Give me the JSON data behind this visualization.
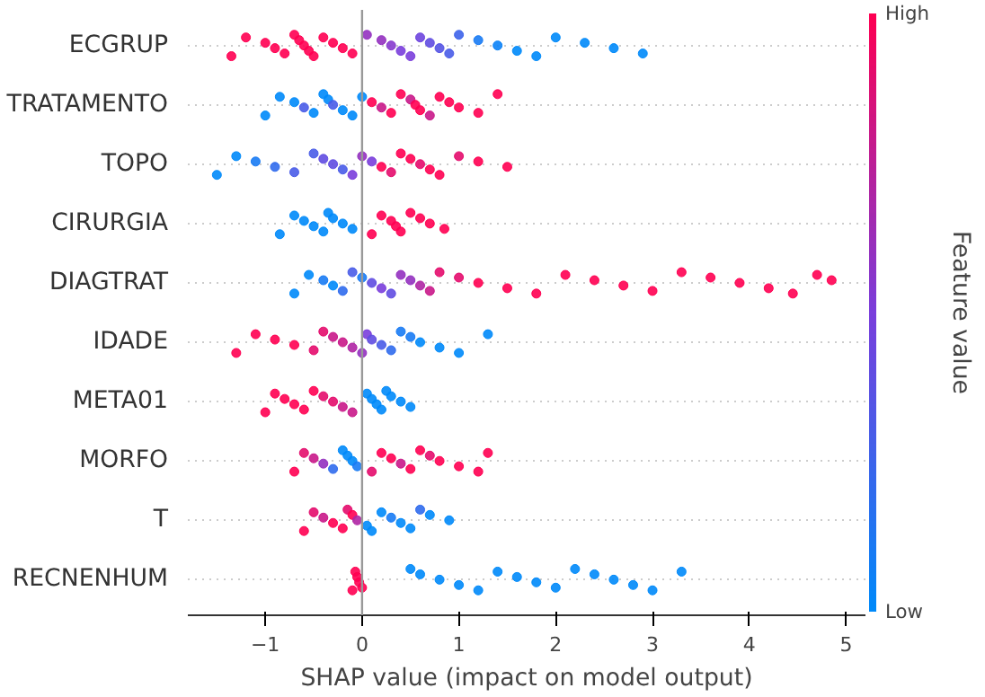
{
  "chart_data": {
    "type": "scatter",
    "orientation": "horizontal",
    "xlabel": "SHAP value (impact on model output)",
    "clabel": "Feature value",
    "categories": [
      "ECGRUP",
      "TRATAMENTO",
      "TOPO",
      "CIRURGIA",
      "DIAGTRAT",
      "IDADE",
      "META01",
      "MORFO",
      "T",
      "RECNENHUM"
    ],
    "xlim": [
      -1.8,
      5.2
    ],
    "xticks": [
      -1,
      0,
      1,
      2,
      3,
      4,
      5
    ],
    "clim": [
      0,
      1
    ],
    "cticks": [
      {
        "value": 0,
        "label": "Low"
      },
      {
        "value": 1,
        "label": "High"
      }
    ],
    "grid": "y",
    "marker": "circle",
    "ref_lines": [
      {
        "axis": "x",
        "value": 0,
        "color": "#999999"
      }
    ],
    "series": [
      {
        "x": [
          "ECGRUP",
          "ECGRUP",
          "ECGRUP",
          "ECGRUP",
          "ECGRUP",
          "ECGRUP",
          "ECGRUP",
          "ECGRUP",
          "ECGRUP",
          "ECGRUP",
          "ECGRUP",
          "ECGRUP",
          "ECGRUP",
          "ECGRUP",
          "ECGRUP",
          "ECGRUP",
          "ECGRUP",
          "ECGRUP",
          "ECGRUP",
          "ECGRUP",
          "ECGRUP",
          "ECGRUP",
          "ECGRUP",
          "ECGRUP",
          "ECGRUP",
          "ECGRUP",
          "ECGRUP",
          "ECGRUP",
          "ECGRUP",
          "ECGRUP",
          "ECGRUP",
          "ECGRUP"
        ],
        "values": [
          -1.35,
          -1.2,
          -1.0,
          -0.9,
          -0.8,
          -0.7,
          -0.65,
          -0.6,
          -0.55,
          -0.5,
          -0.4,
          -0.3,
          -0.2,
          -0.1,
          0.05,
          0.2,
          0.3,
          0.4,
          0.5,
          0.6,
          0.7,
          0.8,
          0.9,
          1.0,
          1.2,
          1.4,
          1.6,
          1.8,
          2.0,
          2.3,
          2.6,
          2.9
        ],
        "cvalues": [
          1,
          1,
          1,
          1,
          1,
          1,
          1,
          1,
          1,
          1,
          1,
          1,
          1,
          1,
          0.6,
          0.6,
          0.55,
          0.5,
          0.5,
          0.45,
          0.4,
          0.35,
          0.3,
          0.25,
          0.1,
          0.05,
          0,
          0,
          0,
          0,
          0,
          0
        ],
        "colors": [
          "#ff0052",
          "#ff0052",
          "#ff0052",
          "#ff0052",
          "#ff0052",
          "#ff0052",
          "#ff0052",
          "#ff0052",
          "#ff0052",
          "#ff0052",
          "#ff0052",
          "#ff0052",
          "#ff0052",
          "#ff0052",
          "#9431c0",
          "#9431c0",
          "#8737ce",
          "#7a3edc",
          "#7a3edc",
          "#6d45df",
          "#614de2",
          "#5554e5",
          "#495ce8",
          "#3d64eb",
          "#187af4",
          "#0c82f7",
          "#008afa",
          "#008afa",
          "#008afa",
          "#008afa",
          "#008afa",
          "#008afa"
        ]
      },
      {
        "x": [
          "TRATAMENTO",
          "TRATAMENTO",
          "TRATAMENTO",
          "TRATAMENTO",
          "TRATAMENTO",
          "TRATAMENTO",
          "TRATAMENTO",
          "TRATAMENTO",
          "TRATAMENTO",
          "TRATAMENTO",
          "TRATAMENTO",
          "TRATAMENTO",
          "TRATAMENTO",
          "TRATAMENTO",
          "TRATAMENTO",
          "TRATAMENTO",
          "TRATAMENTO",
          "TRATAMENTO",
          "TRATAMENTO",
          "TRATAMENTO",
          "TRATAMENTO",
          "TRATAMENTO",
          "TRATAMENTO",
          "TRATAMENTO"
        ],
        "values": [
          -1.0,
          -0.85,
          -0.7,
          -0.6,
          -0.5,
          -0.4,
          -0.35,
          -0.3,
          -0.2,
          -0.1,
          0.0,
          0.1,
          0.2,
          0.3,
          0.4,
          0.5,
          0.55,
          0.6,
          0.7,
          0.8,
          0.9,
          1.0,
          1.2,
          1.4
        ],
        "cvalues": [
          0,
          0,
          0,
          0.3,
          0,
          0,
          0,
          0.3,
          0,
          0,
          0,
          1,
          0.8,
          1,
          1,
          0.8,
          1,
          1,
          0.8,
          1,
          1,
          1,
          1,
          1
        ],
        "colors": [
          "#008afa",
          "#008afa",
          "#008afa",
          "#495ce8",
          "#008afa",
          "#008afa",
          "#008afa",
          "#495ce8",
          "#008afa",
          "#008afa",
          "#008afa",
          "#ff0052",
          "#c91889",
          "#ff0052",
          "#ff0052",
          "#c91889",
          "#ff0052",
          "#ff0052",
          "#c91889",
          "#ff0052",
          "#ff0052",
          "#ff0052",
          "#ff0052",
          "#ff0052"
        ]
      },
      {
        "x": [
          "TOPO",
          "TOPO",
          "TOPO",
          "TOPO",
          "TOPO",
          "TOPO",
          "TOPO",
          "TOPO",
          "TOPO",
          "TOPO",
          "TOPO",
          "TOPO",
          "TOPO",
          "TOPO",
          "TOPO",
          "TOPO",
          "TOPO",
          "TOPO",
          "TOPO",
          "TOPO",
          "TOPO",
          "TOPO"
        ],
        "values": [
          -1.5,
          -1.3,
          -1.1,
          -0.9,
          -0.7,
          -0.5,
          -0.4,
          -0.3,
          -0.2,
          -0.1,
          0.0,
          0.1,
          0.2,
          0.3,
          0.4,
          0.5,
          0.6,
          0.7,
          0.8,
          1.0,
          1.2,
          1.5
        ],
        "cvalues": [
          0,
          0,
          0.1,
          0.2,
          0.3,
          0.3,
          0.4,
          0.4,
          0.3,
          0.5,
          0.6,
          0.5,
          1,
          0.9,
          1,
          1,
          0.9,
          1,
          1,
          0.9,
          1,
          1
        ],
        "colors": [
          "#008afa",
          "#008afa",
          "#187af4",
          "#306bee",
          "#495ce8",
          "#495ce8",
          "#614de2",
          "#614de2",
          "#495ce8",
          "#7a3edc",
          "#9431c0",
          "#7a3edc",
          "#ff0052",
          "#e40c6d",
          "#ff0052",
          "#ff0052",
          "#e40c6d",
          "#ff0052",
          "#ff0052",
          "#e40c6d",
          "#ff0052",
          "#ff0052"
        ]
      },
      {
        "x": [
          "CIRURGIA",
          "CIRURGIA",
          "CIRURGIA",
          "CIRURGIA",
          "CIRURGIA",
          "CIRURGIA",
          "CIRURGIA",
          "CIRURGIA",
          "CIRURGIA",
          "CIRURGIA",
          "CIRURGIA",
          "CIRURGIA",
          "CIRURGIA",
          "CIRURGIA",
          "CIRURGIA",
          "CIRURGIA",
          "CIRURGIA",
          "CIRURGIA"
        ],
        "values": [
          -0.85,
          -0.7,
          -0.6,
          -0.5,
          -0.4,
          -0.35,
          -0.3,
          -0.2,
          -0.1,
          0.1,
          0.2,
          0.3,
          0.35,
          0.4,
          0.5,
          0.6,
          0.7,
          0.85
        ],
        "cvalues": [
          0,
          0,
          0,
          0,
          0,
          0,
          0,
          0,
          0,
          1,
          1,
          1,
          1,
          1,
          1,
          1,
          1,
          1
        ],
        "colors": [
          "#008afa",
          "#008afa",
          "#008afa",
          "#008afa",
          "#008afa",
          "#008afa",
          "#008afa",
          "#008afa",
          "#008afa",
          "#ff0052",
          "#ff0052",
          "#ff0052",
          "#ff0052",
          "#ff0052",
          "#ff0052",
          "#ff0052",
          "#ff0052",
          "#ff0052"
        ]
      },
      {
        "x": [
          "DIAGTRAT",
          "DIAGTRAT",
          "DIAGTRAT",
          "DIAGTRAT",
          "DIAGTRAT",
          "DIAGTRAT",
          "DIAGTRAT",
          "DIAGTRAT",
          "DIAGTRAT",
          "DIAGTRAT",
          "DIAGTRAT",
          "DIAGTRAT",
          "DIAGTRAT",
          "DIAGTRAT",
          "DIAGTRAT",
          "DIAGTRAT",
          "DIAGTRAT",
          "DIAGTRAT",
          "DIAGTRAT",
          "DIAGTRAT",
          "DIAGTRAT",
          "DIAGTRAT",
          "DIAGTRAT",
          "DIAGTRAT",
          "DIAGTRAT",
          "DIAGTRAT",
          "DIAGTRAT",
          "DIAGTRAT",
          "DIAGTRAT",
          "DIAGTRAT"
        ],
        "values": [
          -0.7,
          -0.55,
          -0.4,
          -0.3,
          -0.2,
          -0.1,
          0.0,
          0.1,
          0.2,
          0.3,
          0.4,
          0.5,
          0.6,
          0.7,
          0.8,
          1.0,
          1.2,
          1.5,
          1.8,
          2.1,
          2.4,
          2.7,
          3.0,
          3.3,
          3.6,
          3.9,
          4.2,
          4.45,
          4.7,
          4.85
        ],
        "cvalues": [
          0,
          0,
          0.1,
          0,
          0.2,
          0.3,
          0.1,
          0.4,
          0.5,
          0.4,
          0.6,
          0.6,
          0.7,
          0.8,
          0.9,
          0.9,
          1,
          1,
          1,
          1,
          1,
          1,
          1,
          1,
          1,
          1,
          1,
          1,
          1,
          1
        ],
        "colors": [
          "#008afa",
          "#008afa",
          "#187af4",
          "#008afa",
          "#306bee",
          "#495ce8",
          "#187af4",
          "#614de2",
          "#7a3edc",
          "#614de2",
          "#9431c0",
          "#9431c0",
          "#af25a4",
          "#c91889",
          "#e40c6d",
          "#e40c6d",
          "#ff0052",
          "#ff0052",
          "#ff0052",
          "#ff0052",
          "#ff0052",
          "#ff0052",
          "#ff0052",
          "#ff0052",
          "#ff0052",
          "#ff0052",
          "#ff0052",
          "#ff0052",
          "#ff0052",
          "#ff0052"
        ]
      },
      {
        "x": [
          "IDADE",
          "IDADE",
          "IDADE",
          "IDADE",
          "IDADE",
          "IDADE",
          "IDADE",
          "IDADE",
          "IDADE",
          "IDADE",
          "IDADE",
          "IDADE",
          "IDADE",
          "IDADE",
          "IDADE",
          "IDADE",
          "IDADE",
          "IDADE",
          "IDADE",
          "IDADE"
        ],
        "values": [
          -1.3,
          -1.1,
          -0.9,
          -0.7,
          -0.5,
          -0.4,
          -0.3,
          -0.2,
          -0.1,
          0.0,
          0.05,
          0.1,
          0.2,
          0.3,
          0.4,
          0.5,
          0.6,
          0.8,
          1.0,
          1.3
        ],
        "cvalues": [
          1,
          1,
          1,
          1,
          0.9,
          0.9,
          0.8,
          0.8,
          0.7,
          0.6,
          0.5,
          0.4,
          0.3,
          0.2,
          0.1,
          0.1,
          0,
          0,
          0,
          0
        ],
        "colors": [
          "#ff0052",
          "#ff0052",
          "#ff0052",
          "#ff0052",
          "#e40c6d",
          "#e40c6d",
          "#c91889",
          "#c91889",
          "#af25a4",
          "#9431c0",
          "#7a3edc",
          "#614de2",
          "#495ce8",
          "#306bee",
          "#187af4",
          "#187af4",
          "#008afa",
          "#008afa",
          "#008afa",
          "#008afa"
        ]
      },
      {
        "x": [
          "META01",
          "META01",
          "META01",
          "META01",
          "META01",
          "META01",
          "META01",
          "META01",
          "META01",
          "META01",
          "META01",
          "META01",
          "META01",
          "META01",
          "META01",
          "META01",
          "META01",
          "META01"
        ],
        "values": [
          -1.0,
          -0.9,
          -0.8,
          -0.7,
          -0.6,
          -0.5,
          -0.4,
          -0.3,
          -0.2,
          -0.1,
          0.05,
          0.1,
          0.15,
          0.2,
          0.25,
          0.3,
          0.4,
          0.5
        ],
        "cvalues": [
          1,
          1,
          1,
          1,
          1,
          1,
          0.9,
          0.9,
          0.8,
          0.8,
          0,
          0,
          0,
          0,
          0,
          0,
          0,
          0
        ],
        "colors": [
          "#ff0052",
          "#ff0052",
          "#ff0052",
          "#ff0052",
          "#ff0052",
          "#ff0052",
          "#e40c6d",
          "#e40c6d",
          "#c91889",
          "#c91889",
          "#008afa",
          "#008afa",
          "#008afa",
          "#008afa",
          "#008afa",
          "#008afa",
          "#008afa",
          "#008afa"
        ]
      },
      {
        "x": [
          "MORFO",
          "MORFO",
          "MORFO",
          "MORFO",
          "MORFO",
          "MORFO",
          "MORFO",
          "MORFO",
          "MORFO",
          "MORFO",
          "MORFO",
          "MORFO",
          "MORFO",
          "MORFO",
          "MORFO",
          "MORFO",
          "MORFO",
          "MORFO",
          "MORFO",
          "MORFO"
        ],
        "values": [
          -0.7,
          -0.6,
          -0.5,
          -0.4,
          -0.3,
          -0.2,
          -0.15,
          -0.1,
          -0.05,
          0.1,
          0.2,
          0.3,
          0.4,
          0.5,
          0.6,
          0.7,
          0.8,
          1.0,
          1.2,
          1.3
        ],
        "cvalues": [
          1,
          0.9,
          0.8,
          0.6,
          0.2,
          0,
          0,
          0,
          0.1,
          0.9,
          1,
          1,
          0.8,
          1,
          1,
          0.9,
          1,
          1,
          1,
          1
        ],
        "colors": [
          "#ff0052",
          "#e40c6d",
          "#c91889",
          "#9431c0",
          "#306bee",
          "#008afa",
          "#008afa",
          "#008afa",
          "#187af4",
          "#e40c6d",
          "#ff0052",
          "#ff0052",
          "#c91889",
          "#ff0052",
          "#ff0052",
          "#e40c6d",
          "#ff0052",
          "#ff0052",
          "#ff0052",
          "#ff0052"
        ]
      },
      {
        "x": [
          "T",
          "T",
          "T",
          "T",
          "T",
          "T",
          "T",
          "T",
          "T",
          "T",
          "T",
          "T",
          "T",
          "T",
          "T",
          "T",
          "T"
        ],
        "values": [
          -0.6,
          -0.5,
          -0.4,
          -0.3,
          -0.2,
          -0.15,
          -0.1,
          -0.05,
          0.05,
          0.1,
          0.2,
          0.3,
          0.4,
          0.5,
          0.6,
          0.7,
          0.9
        ],
        "cvalues": [
          1,
          0.9,
          0.8,
          1,
          1,
          0.9,
          1,
          0.7,
          0,
          0,
          0,
          0.1,
          0,
          0,
          0.2,
          0,
          0
        ],
        "colors": [
          "#ff0052",
          "#e40c6d",
          "#c91889",
          "#ff0052",
          "#ff0052",
          "#e40c6d",
          "#ff0052",
          "#af25a4",
          "#008afa",
          "#008afa",
          "#008afa",
          "#187af4",
          "#008afa",
          "#008afa",
          "#306bee",
          "#008afa",
          "#008afa"
        ]
      },
      {
        "x": [
          "RECNENHUM",
          "RECNENHUM",
          "RECNENHUM",
          "RECNENHUM",
          "RECNENHUM",
          "RECNENHUM",
          "RECNENHUM",
          "RECNENHUM",
          "RECNENHUM",
          "RECNENHUM",
          "RECNENHUM",
          "RECNENHUM",
          "RECNENHUM",
          "RECNENHUM",
          "RECNENHUM",
          "RECNENHUM",
          "RECNENHUM",
          "RECNENHUM",
          "RECNENHUM",
          "RECNENHUM"
        ],
        "values": [
          -0.1,
          -0.07,
          -0.05,
          -0.03,
          0.0,
          0.5,
          0.6,
          0.8,
          1.0,
          1.2,
          1.4,
          1.6,
          1.8,
          2.0,
          2.2,
          2.4,
          2.6,
          2.8,
          3.0,
          3.3
        ],
        "cvalues": [
          1,
          1,
          1,
          1,
          1,
          0,
          0,
          0,
          0,
          0,
          0,
          0,
          0,
          0,
          0,
          0,
          0,
          0,
          0,
          0
        ],
        "colors": [
          "#ff0052",
          "#ff0052",
          "#ff0052",
          "#ff0052",
          "#ff0052",
          "#008afa",
          "#008afa",
          "#008afa",
          "#008afa",
          "#008afa",
          "#008afa",
          "#008afa",
          "#008afa",
          "#008afa",
          "#008afa",
          "#008afa",
          "#008afa",
          "#008afa",
          "#008afa",
          "#008afa"
        ]
      }
    ]
  }
}
